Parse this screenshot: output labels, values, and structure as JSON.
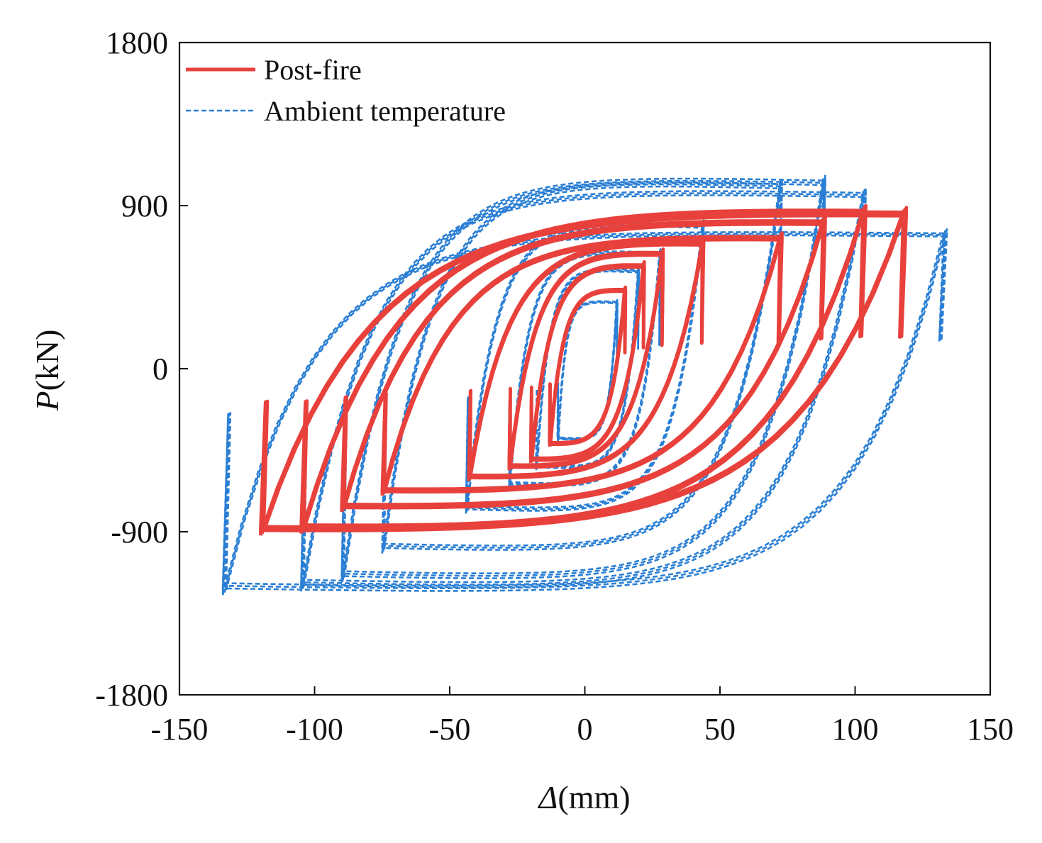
{
  "chart_data": {
    "type": "line",
    "title": "",
    "xlabel_symbol": "Δ",
    "xlabel_unit": "(mm)",
    "ylabel_symbol": "P",
    "ylabel_unit": "(kN)",
    "xlim": [
      -150,
      150
    ],
    "ylim": [
      -1800,
      1800
    ],
    "xticks": [
      "-150",
      "-100",
      "-50",
      "0",
      "50",
      "100",
      "150"
    ],
    "yticks": [
      "-1800",
      "-900",
      "0",
      "900",
      "1800"
    ],
    "grid": false,
    "legend_position": "top-left",
    "series": [
      {
        "name": "Post-fire",
        "color": "#e8413c",
        "style": "solid",
        "loops": [
          {
            "xmax": 15,
            "pmax": 450,
            "xmin": -13,
            "pmin": -430,
            "cycles": 3
          },
          {
            "xmax": 22,
            "pmax": 590,
            "xmin": -20,
            "pmin": -520,
            "cycles": 3
          },
          {
            "xmax": 29,
            "pmax": 660,
            "xmin": -28,
            "pmin": -560,
            "cycles": 3
          },
          {
            "xmax": 44,
            "pmax": 720,
            "xmin": -43,
            "pmin": -620,
            "cycles": 3
          },
          {
            "xmax": 73,
            "pmax": 750,
            "xmin": -75,
            "pmin": -700,
            "cycles": 3
          },
          {
            "xmax": 89,
            "pmax": 840,
            "xmin": -90,
            "pmin": -790,
            "cycles": 3
          },
          {
            "xmax": 104,
            "pmax": 900,
            "xmin": -105,
            "pmin": -910,
            "cycles": 3
          },
          {
            "xmax": 119,
            "pmax": 890,
            "xmin": -120,
            "pmin": -920,
            "cycles": 3
          }
        ]
      },
      {
        "name": "Ambient temperature",
        "color": "#2a7fd4",
        "style": "dashed",
        "loops": [
          {
            "xmax": 12,
            "pmax": 380,
            "xmin": -10,
            "pmin": -400,
            "cycles": 3
          },
          {
            "xmax": 20,
            "pmax": 560,
            "xmin": -18,
            "pmin": -560,
            "cycles": 3
          },
          {
            "xmax": 28,
            "pmax": 660,
            "xmin": -28,
            "pmin": -660,
            "cycles": 3
          },
          {
            "xmax": 44,
            "pmax": 820,
            "xmin": -44,
            "pmin": -800,
            "cycles": 3
          },
          {
            "xmax": 73,
            "pmax": 1050,
            "xmin": -75,
            "pmin": -1020,
            "cycles": 3
          },
          {
            "xmax": 89,
            "pmax": 1070,
            "xmin": -90,
            "pmin": -1180,
            "cycles": 3
          },
          {
            "xmax": 104,
            "pmax": 1000,
            "xmin": -105,
            "pmin": -1230,
            "cycles": 3
          },
          {
            "xmax": 134,
            "pmax": 770,
            "xmin": -134,
            "pmin": -1250,
            "cycles": 3
          }
        ]
      }
    ]
  }
}
